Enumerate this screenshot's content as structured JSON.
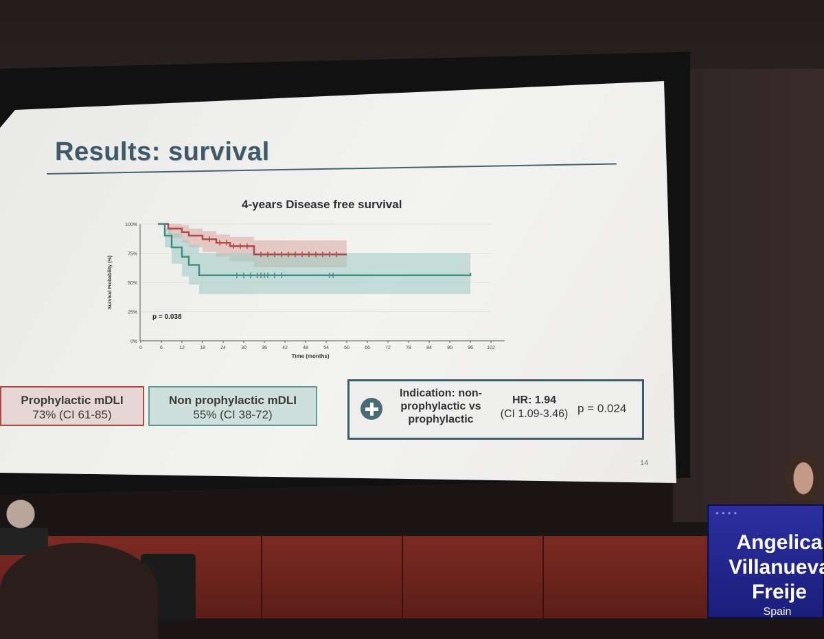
{
  "slide": {
    "title": "Results: survival",
    "chart_title": "4-years Disease free survival",
    "slide_number": "14"
  },
  "chart_data": {
    "type": "line",
    "title": "4-years Disease free survival",
    "xlabel": "Time (months)",
    "ylabel": "Survival Probability (%)",
    "x_ticks": [
      "0",
      "6",
      "12",
      "18",
      "24",
      "30",
      "36",
      "42",
      "48",
      "54",
      "60",
      "66",
      "72",
      "78",
      "84",
      "90",
      "96",
      "102"
    ],
    "y_ticks": [
      "0%",
      "25%",
      "50%",
      "75%",
      "100%"
    ],
    "xlim": [
      0,
      102
    ],
    "ylim": [
      0,
      100
    ],
    "annotation": "p = 0.038",
    "series": [
      {
        "name": "Prophylactic mDLI",
        "color": "#b04a46",
        "band_color": "#d9a8a2",
        "x": [
          5,
          8,
          12,
          14,
          18,
          22,
          26,
          33,
          60
        ],
        "y": [
          100,
          96,
          93,
          90,
          87,
          84,
          81,
          74,
          74
        ],
        "ci_lower": [
          100,
          88,
          84,
          80,
          76,
          72,
          68,
          63,
          63
        ],
        "ci_upper": [
          100,
          100,
          99,
          96,
          94,
          91,
          89,
          86,
          86
        ],
        "censor_x": [
          20,
          23,
          25,
          27,
          29,
          31,
          35,
          37,
          39,
          41,
          43,
          45,
          47,
          49,
          51,
          53,
          55,
          57
        ]
      },
      {
        "name": "Non prophylactic mDLI",
        "color": "#3e8f81",
        "band_color": "#9fcbc3",
        "x": [
          5,
          7,
          9,
          12,
          14,
          17,
          96
        ],
        "y": [
          100,
          90,
          80,
          72,
          65,
          56,
          58
        ],
        "ci_lower": [
          100,
          80,
          66,
          55,
          48,
          40,
          42
        ],
        "ci_upper": [
          100,
          97,
          92,
          86,
          82,
          75,
          80
        ],
        "censor_x": [
          28,
          30,
          32,
          34,
          35,
          36,
          37,
          39,
          41,
          55,
          56
        ]
      }
    ]
  },
  "legend": {
    "prophylactic": {
      "label": "Prophylactic mDLI",
      "value": "73% (CI 61-85)"
    },
    "non_prophylactic": {
      "label": "Non prophylactic mDLI",
      "value": "55% (CI 38-72)"
    }
  },
  "hr_box": {
    "indication_line1": "Indication: non-",
    "indication_line2": "prophylactic vs",
    "indication_line3": "prophylactic",
    "hr_label": "HR: 1.94",
    "hr_ci": "(CI 1.09-3.46)",
    "p_value": "p = 0.024"
  },
  "podium": {
    "line1": "Angelica",
    "line2": "Villanueva",
    "line3": "Freije",
    "country": "Spain"
  }
}
